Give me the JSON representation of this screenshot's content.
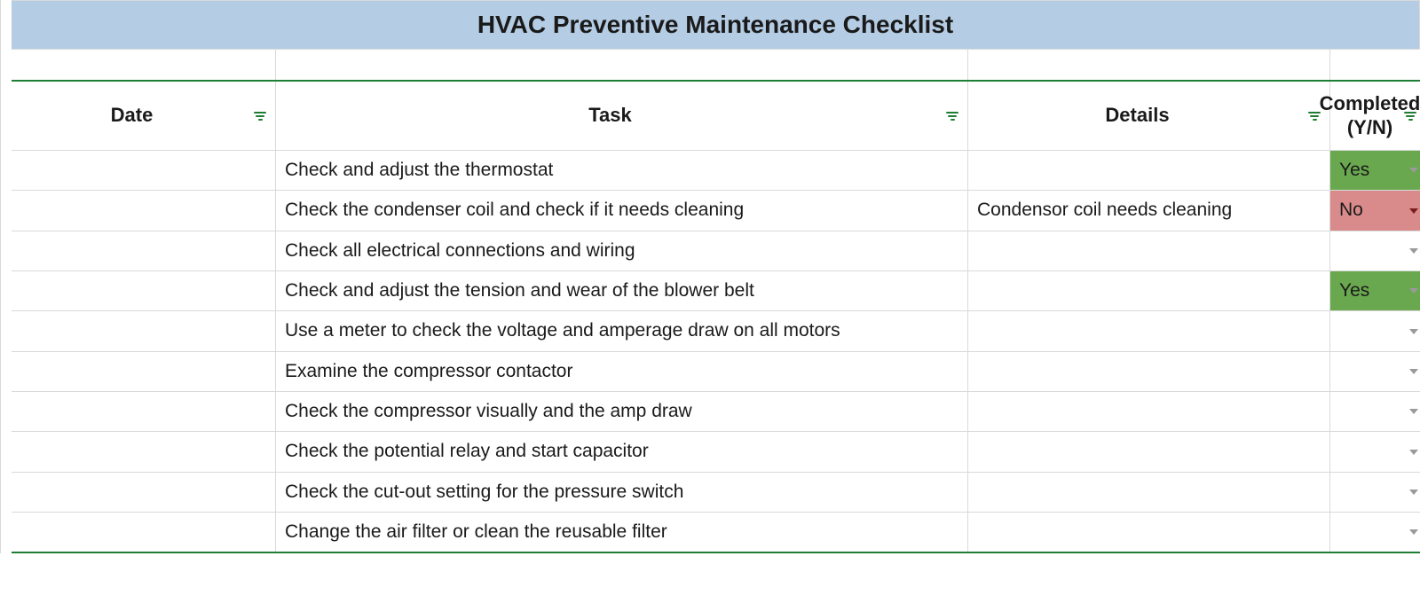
{
  "colors": {
    "title_bg": "#b4cce4",
    "header_underline": "#1e7e34",
    "bottom_underline": "#1e7e34",
    "filter_icon": "#1e7e34",
    "caret_default": "#9a9a9a",
    "caret_no": "#7a1d1d",
    "yes_bg": "#6aa84f",
    "no_bg": "#d98b8b",
    "cell_text": "#1a1a1a"
  },
  "title": "HVAC Preventive Maintenance Checklist",
  "columns": {
    "date": "Date",
    "task": "Task",
    "details": "Details",
    "completed": "Completed (Y/N)"
  },
  "rows": [
    {
      "date": "",
      "task": "Check and adjust the thermostat",
      "details": "",
      "completed": "Yes",
      "status": "yes"
    },
    {
      "date": "",
      "task": "Check the condenser coil and check if it needs cleaning",
      "details": "Condensor coil needs cleaning",
      "completed": "No",
      "status": "no"
    },
    {
      "date": "",
      "task": "Check all electrical connections and wiring",
      "details": "",
      "completed": "",
      "status": "blank"
    },
    {
      "date": "",
      "task": "Check and adjust the tension and wear of the blower belt",
      "details": "",
      "completed": "Yes",
      "status": "yes"
    },
    {
      "date": "",
      "task": "Use a meter to check the voltage and amperage draw on all motors",
      "details": "",
      "completed": "",
      "status": "blank"
    },
    {
      "date": "",
      "task": "Examine the compressor contactor",
      "details": "",
      "completed": "",
      "status": "blank"
    },
    {
      "date": "",
      "task": "Check the compressor visually and the amp draw",
      "details": "",
      "completed": "",
      "status": "blank"
    },
    {
      "date": "",
      "task": "Check the potential relay and start capacitor",
      "details": "",
      "completed": "",
      "status": "blank"
    },
    {
      "date": "",
      "task": "Check the cut-out setting for the pressure switch",
      "details": "",
      "completed": "",
      "status": "blank"
    },
    {
      "date": "",
      "task": "Change the air filter or clean the reusable filter",
      "details": "",
      "completed": "",
      "status": "blank"
    }
  ]
}
